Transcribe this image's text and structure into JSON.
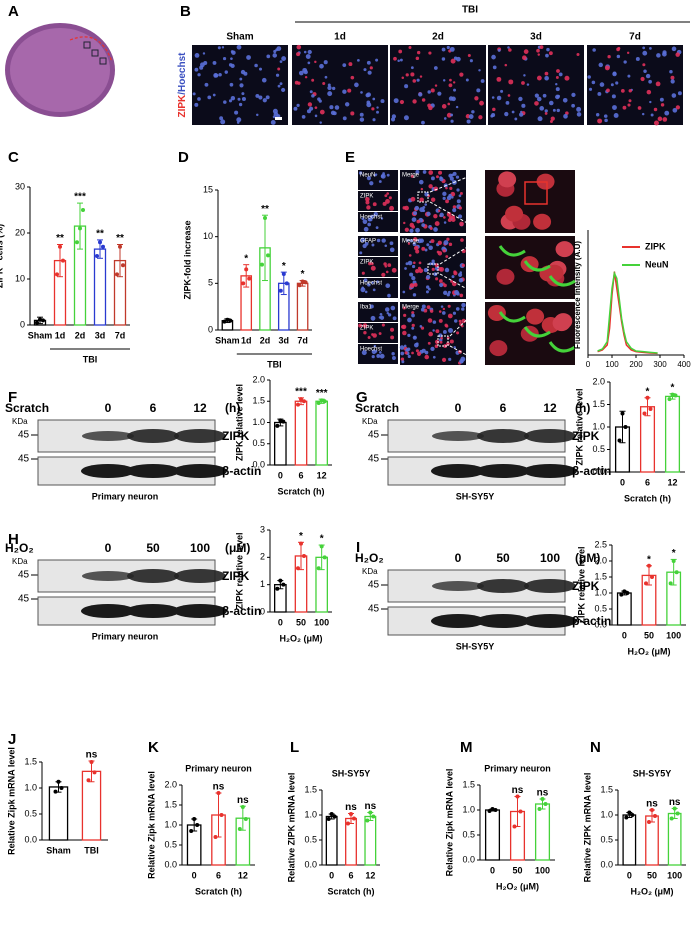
{
  "panel_labels": [
    "A",
    "B",
    "C",
    "D",
    "E",
    "F",
    "G",
    "H",
    "I",
    "J",
    "K",
    "L",
    "M",
    "N"
  ],
  "figure_b": {
    "group": "TBI",
    "columns": [
      "Sham",
      "1d",
      "2d",
      "3d",
      "7d"
    ],
    "stain_red": "ZIPK",
    "stain_blue": "/Hoechst"
  },
  "figure_e": {
    "rows": [
      {
        "channels": [
          "NeuN",
          "ZIPK",
          "Hoechst"
        ],
        "merge": "Merge"
      },
      {
        "channels": [
          "GFAP",
          "ZIPK",
          "Hoechst"
        ],
        "merge": "Merge"
      },
      {
        "channels": [
          "Iba1",
          "ZIPK",
          "Hoechst"
        ],
        "merge": "Merge"
      }
    ]
  },
  "blots": [
    {
      "treatment": "Scratch",
      "lanes": [
        "0",
        "6",
        "12"
      ],
      "unit": "(h)",
      "kda": "KDa",
      "markers": [
        "45",
        "45"
      ],
      "proteins": [
        "ZIPK",
        "β-actin"
      ],
      "cell": "Primary neuron"
    },
    {
      "treatment": "Scratch",
      "lanes": [
        "0",
        "6",
        "12"
      ],
      "unit": "(h)",
      "kda": "KDa",
      "markers": [
        "45",
        "45"
      ],
      "proteins": [
        "ZIPK",
        "β-actin"
      ],
      "cell": "SH-SY5Y"
    },
    {
      "treatment": "H₂O₂",
      "lanes": [
        "0",
        "50",
        "100"
      ],
      "unit": "(μM)",
      "kda": "KDa",
      "markers": [
        "45",
        "45"
      ],
      "proteins": [
        "ZIPK",
        "β-actin"
      ],
      "cell": "Primary neuron"
    },
    {
      "treatment": "H₂O₂",
      "lanes": [
        "0",
        "50",
        "100"
      ],
      "unit": "(μM)",
      "kda": "KDa",
      "markers": [
        "45",
        "45"
      ],
      "proteins": [
        "ZIPK",
        "β-actin"
      ],
      "cell": "SH-SY5Y"
    }
  ],
  "chart_data": [
    {
      "type": "bar",
      "y_label": "ZIPK⁺ cells (%)",
      "categories": [
        "Sham",
        "1d",
        "2d",
        "3d",
        "7d"
      ],
      "group_label": "TBI",
      "values": [
        1,
        14,
        21.5,
        16.5,
        14
      ],
      "errors": [
        0.7,
        3.5,
        5,
        2,
        3.5
      ],
      "points": [
        [
          0.5,
          1.2,
          1.0
        ],
        [
          11,
          17,
          14
        ],
        [
          18,
          21,
          25
        ],
        [
          15,
          18,
          17
        ],
        [
          11,
          17,
          13
        ]
      ],
      "significance": [
        null,
        "**",
        "***",
        "**",
        "**"
      ],
      "colors": [
        "#000000",
        "#e8322d",
        "#45d23a",
        "#2a3ad0",
        "#c0392b"
      ],
      "ylim": [
        0,
        30
      ],
      "yticks": [
        0,
        10,
        20,
        30
      ]
    },
    {
      "type": "bar",
      "y_label": "ZIPK-fold increase",
      "categories": [
        "Sham",
        "1d",
        "2d",
        "3d",
        "7d"
      ],
      "group_label": "TBI",
      "values": [
        1,
        5.8,
        8.8,
        5,
        5
      ],
      "errors": [
        0.2,
        1.2,
        3.5,
        1.2,
        0.3
      ],
      "points": [
        [
          0.9,
          1.1,
          1.0
        ],
        [
          5,
          6.5,
          5.5
        ],
        [
          7,
          12,
          8
        ],
        [
          4.2,
          6,
          5
        ],
        [
          4.8,
          5.2,
          5.1
        ]
      ],
      "significance": [
        null,
        "*",
        "**",
        "*",
        "*"
      ],
      "colors": [
        "#000000",
        "#e8322d",
        "#45d23a",
        "#2a3ad0",
        "#c0392b"
      ],
      "ylim": [
        0,
        15
      ],
      "yticks": [
        0,
        5,
        10,
        15
      ]
    },
    {
      "type": "bar",
      "y_label": "ZIPK relative level",
      "x_label": "Scratch (h)",
      "categories": [
        "0",
        "6",
        "12"
      ],
      "values": [
        1.0,
        1.5,
        1.5
      ],
      "errors": [
        0.08,
        0.08,
        0.05
      ],
      "points": [
        [
          0.92,
          1.05,
          1.02
        ],
        [
          1.42,
          1.55,
          1.5
        ],
        [
          1.46,
          1.52,
          1.5
        ]
      ],
      "significance": [
        null,
        "***",
        "***"
      ],
      "colors": [
        "#000000",
        "#e8322d",
        "#45d23a"
      ],
      "ylim": [
        0,
        2
      ],
      "yticks": [
        {
          "value": 0,
          "label": "0.0"
        },
        {
          "value": 0.5,
          "label": "0.5"
        },
        {
          "value": 1,
          "label": "1.0"
        },
        {
          "value": 1.5,
          "label": "1.5"
        },
        {
          "value": 2,
          "label": "2.0"
        }
      ]
    },
    {
      "type": "bar",
      "y_label": "ZIPK relative level",
      "x_label": "Scratch (h)",
      "categories": [
        "0",
        "6",
        "12"
      ],
      "values": [
        1.0,
        1.45,
        1.68
      ],
      "errors": [
        0.35,
        0.2,
        0.06
      ],
      "points": [
        [
          0.7,
          1.3,
          1.0
        ],
        [
          1.3,
          1.65,
          1.4
        ],
        [
          1.62,
          1.72,
          1.7
        ]
      ],
      "significance": [
        null,
        "*",
        "*"
      ],
      "colors": [
        "#000000",
        "#e8322d",
        "#45d23a"
      ],
      "ylim": [
        0,
        2
      ],
      "yticks": [
        {
          "value": 0,
          "label": "0.0"
        },
        {
          "value": 0.5,
          "label": "0.5"
        },
        {
          "value": 1,
          "label": "1.0"
        },
        {
          "value": 1.5,
          "label": "1.5"
        },
        {
          "value": 2,
          "label": "2.0"
        }
      ]
    },
    {
      "type": "bar",
      "y_label": "ZIPK relative level",
      "x_label": "H₂O₂ (μM)",
      "categories": [
        "0",
        "50",
        "100"
      ],
      "values": [
        1.0,
        2.05,
        2.0
      ],
      "errors": [
        0.15,
        0.5,
        0.45
      ],
      "points": [
        [
          0.85,
          1.15,
          1.0
        ],
        [
          1.6,
          2.5,
          2.05
        ],
        [
          1.6,
          2.4,
          2.0
        ]
      ],
      "significance": [
        null,
        "*",
        "*"
      ],
      "colors": [
        "#000000",
        "#e8322d",
        "#45d23a"
      ],
      "ylim": [
        0,
        3
      ],
      "yticks": [
        0,
        1,
        2,
        3
      ]
    },
    {
      "type": "bar",
      "y_label": "ZIPK relative level",
      "x_label": "H₂O₂ (μM)",
      "categories": [
        "0",
        "50",
        "100"
      ],
      "values": [
        1.0,
        1.55,
        1.65
      ],
      "errors": [
        0.06,
        0.3,
        0.4
      ],
      "points": [
        [
          0.95,
          1.05,
          1.0
        ],
        [
          1.3,
          1.85,
          1.5
        ],
        [
          1.3,
          2.0,
          1.65
        ]
      ],
      "significance": [
        null,
        "*",
        "*"
      ],
      "colors": [
        "#000000",
        "#e8322d",
        "#45d23a"
      ],
      "ylim": [
        0,
        2.5
      ],
      "yticks": [
        {
          "value": 0,
          "label": "0.0"
        },
        {
          "value": 0.5,
          "label": "0.5"
        },
        {
          "value": 1,
          "label": "1.0"
        },
        {
          "value": 1.5,
          "label": "1.5"
        },
        {
          "value": 2,
          "label": "2.0"
        },
        {
          "value": 2.5,
          "label": "2.5"
        }
      ]
    },
    {
      "type": "bar",
      "y_label": "Relative Zipk mRNA level",
      "categories": [
        "Sham",
        "TBI"
      ],
      "values": [
        1.02,
        1.32
      ],
      "errors": [
        0.1,
        0.2
      ],
      "points": [
        [
          0.93,
          1.12,
          1.0
        ],
        [
          1.15,
          1.5,
          1.3
        ]
      ],
      "significance": [
        null,
        "ns"
      ],
      "colors": [
        "#000000",
        "#e8322d"
      ],
      "ylim": [
        0,
        1.5
      ],
      "yticks": [
        {
          "value": 0,
          "label": "0.0"
        },
        {
          "value": 0.5,
          "label": "0.5"
        },
        {
          "value": 1,
          "label": "1.0"
        },
        {
          "value": 1.5,
          "label": "1.5"
        }
      ]
    },
    {
      "type": "bar",
      "title": "Primary neuron",
      "y_label": "Relative Zipk mRNA level",
      "x_label": "Scratch (h)",
      "categories": [
        "0",
        "6",
        "12"
      ],
      "values": [
        1.0,
        1.25,
        1.17
      ],
      "errors": [
        0.15,
        0.55,
        0.3
      ],
      "points": [
        [
          0.85,
          1.15,
          1.0
        ],
        [
          0.7,
          1.8,
          1.25
        ],
        [
          0.9,
          1.45,
          1.15
        ]
      ],
      "significance": [
        null,
        "ns",
        "ns"
      ],
      "colors": [
        "#000000",
        "#e8322d",
        "#45d23a"
      ],
      "ylim": [
        0,
        2
      ],
      "yticks": [
        {
          "value": 0,
          "label": "0.0"
        },
        {
          "value": 0.5,
          "label": "0.5"
        },
        {
          "value": 1,
          "label": "1.0"
        },
        {
          "value": 1.5,
          "label": "1.5"
        },
        {
          "value": 2,
          "label": "2.0"
        }
      ]
    },
    {
      "type": "bar",
      "title": "SH-SY5Y",
      "y_label": "Relative ZIPK mRNA level",
      "x_label": "Scratch (h)",
      "categories": [
        "0",
        "6",
        "12"
      ],
      "values": [
        0.97,
        0.93,
        0.97
      ],
      "errors": [
        0.05,
        0.1,
        0.08
      ],
      "points": [
        [
          0.92,
          1.02,
          0.97
        ],
        [
          0.83,
          1.02,
          0.93
        ],
        [
          0.89,
          1.05,
          0.97
        ]
      ],
      "significance": [
        null,
        "ns",
        "ns"
      ],
      "colors": [
        "#000000",
        "#e8322d",
        "#45d23a"
      ],
      "ylim": [
        0,
        1.5
      ],
      "yticks": [
        {
          "value": 0,
          "label": "0.0"
        },
        {
          "value": 0.5,
          "label": "0.5"
        },
        {
          "value": 1,
          "label": "1.0"
        },
        {
          "value": 1.5,
          "label": "1.5"
        }
      ]
    },
    {
      "type": "bar",
      "title": "Primary neuron",
      "y_label": "Relative Zipk mRNA level",
      "x_label": "H₂O₂ (μM)",
      "categories": [
        "0",
        "50",
        "100"
      ],
      "values": [
        1.0,
        0.97,
        1.12
      ],
      "errors": [
        0.02,
        0.3,
        0.1
      ],
      "points": [
        [
          0.98,
          1.02,
          1.0
        ],
        [
          0.67,
          1.27,
          0.97
        ],
        [
          1.02,
          1.22,
          1.12
        ]
      ],
      "significance": [
        null,
        "ns",
        "ns"
      ],
      "colors": [
        "#000000",
        "#e8322d",
        "#45d23a"
      ],
      "ylim": [
        0,
        1.5
      ],
      "yticks": [
        {
          "value": 0,
          "label": "0.0"
        },
        {
          "value": 0.5,
          "label": "0.5"
        },
        {
          "value": 1,
          "label": "1.0"
        },
        {
          "value": 1.5,
          "label": "1.5"
        }
      ]
    },
    {
      "type": "bar",
      "title": "SH-SY5Y",
      "y_label": "Relative ZIPK mRNA level",
      "x_label": "H₂O₂ (μM)",
      "categories": [
        "0",
        "50",
        "100"
      ],
      "values": [
        1.0,
        0.98,
        1.03
      ],
      "errors": [
        0.05,
        0.12,
        0.1
      ],
      "points": [
        [
          0.95,
          1.05,
          1.0
        ],
        [
          0.86,
          1.1,
          0.98
        ],
        [
          0.93,
          1.13,
          1.03
        ]
      ],
      "significance": [
        null,
        "ns",
        "ns"
      ],
      "colors": [
        "#000000",
        "#e8322d",
        "#45d23a"
      ],
      "ylim": [
        0,
        1.5
      ],
      "yticks": [
        {
          "value": 0,
          "label": "0.0"
        },
        {
          "value": 0.5,
          "label": "0.5"
        },
        {
          "value": 1,
          "label": "1.0"
        },
        {
          "value": 1.5,
          "label": "1.5"
        }
      ]
    },
    {
      "type": "line",
      "y_label": "Fluorescence Intensity (A.U)",
      "x": [
        40,
        60,
        80,
        90,
        100,
        110,
        120,
        130,
        140,
        150,
        160,
        180,
        200,
        230,
        260,
        290
      ],
      "series": [
        {
          "name": "ZIPK",
          "color": "#e8322d",
          "values": [
            10,
            15,
            30,
            80,
            180,
            250,
            200,
            150,
            100,
            60,
            30,
            15,
            10,
            8,
            6,
            5
          ]
        },
        {
          "name": "NeuN",
          "color": "#45d23a",
          "values": [
            12,
            18,
            40,
            120,
            200,
            245,
            230,
            170,
            110,
            70,
            40,
            20,
            12,
            10,
            8,
            6
          ]
        }
      ],
      "xlim": [
        0,
        400
      ],
      "xticks": [
        0,
        100,
        200,
        300,
        400
      ],
      "ylim": [
        0,
        300
      ]
    }
  ]
}
